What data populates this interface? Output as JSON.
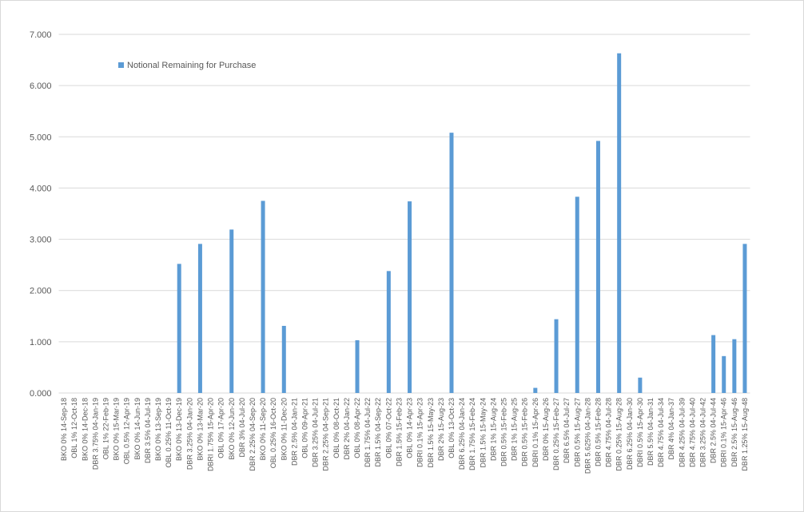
{
  "chart_data": {
    "type": "bar",
    "categories": [
      "BKO 0% 14-Sep-18",
      "OBL 1% 12-Oct-18",
      "BKO 0% 14-Dec-18",
      "DBR 3.75% 04-Jan-19",
      "OBL 1% 22-Feb-19",
      "BKO 0% 15-Mar-19",
      "OBL 0.5% 12-Apr-19",
      "BKO 0% 14-Jun-19",
      "DBR 3.5% 04-Jul-19",
      "BKO 0% 13-Sep-19",
      "OBL 0.25% 11-Oct-19",
      "BKO 0% 13-Dec-19",
      "DBR 3.25% 04-Jan-20",
      "BKO 0% 13-Mar-20",
      "DBRI 1.75% 15-Apr-20",
      "OBL 0% 17-Apr-20",
      "BKO 0% 12-Jun-20",
      "DBR 3% 04-Jul-20",
      "DBR 2.25% 04-Sep-20",
      "BKO 0% 11-Sep-20",
      "OBL 0.25% 16-Oct-20",
      "BKO 0% 11-Dec-20",
      "DBR 2.5% 04-Jan-21",
      "OBL 0% 09-Apr-21",
      "DBR 3.25% 04-Jul-21",
      "DBR 2.25% 04-Sep-21",
      "OBL 0% 08-Oct-21",
      "DBR 2% 04-Jan-22",
      "OBL 0% 08-Apr-22",
      "DBR 1.75% 04-Jul-22",
      "DBR 1.5% 04-Sep-22",
      "OBL 0% 07-Oct-22",
      "DBR 1.5% 15-Feb-23",
      "OBL 0% 14-Apr-23",
      "DBRI 0.1% 15-Apr-23",
      "DBR 1.5% 15-May-23",
      "DBR 2% 15-Aug-23",
      "OBL 0% 13-Oct-23",
      "DBR 6.25% 04-Jan-24",
      "DBR 1.75% 15-Feb-24",
      "DBR 1.5% 15-May-24",
      "DBR 1% 15-Aug-24",
      "DBR 0.5% 15-Feb-25",
      "DBR 1% 15-Aug-25",
      "DBR 0.5% 15-Feb-26",
      "DBRI 0.1% 15-Apr-26",
      "DBR 0% 15-Aug-26",
      "DBR 0.25% 15-Feb-27",
      "DBR 6.5% 04-Jul-27",
      "DBR 0.5% 15-Aug-27",
      "DBR 5.625% 04-Jan-28",
      "DBR 0.5% 15-Feb-28",
      "DBR 4.75% 04-Jul-28",
      "DBR 0.25% 15-Aug-28",
      "DBR 6.25% 04-Jan-30",
      "DBRI 0.5% 15-Apr-30",
      "DBR 5.5% 04-Jan-31",
      "DBR 4.75% 04-Jul-34",
      "DBR 4% 04-Jan-37",
      "DBR 4.25% 04-Jul-39",
      "DBR 4.75% 04-Jul-40",
      "DBR 3.25% 04-Jul-42",
      "DBR 2.5% 04-Jul-44",
      "DBRI 0.1% 15-Apr-46",
      "DBR 2.5% 15-Aug-46",
      "DBR 1.25% 15-Aug-48"
    ],
    "series": [
      {
        "name": "Notional Remaining for Purchase",
        "color": "#5b9bd5",
        "values": [
          0,
          0,
          0,
          0,
          0,
          0,
          0,
          0,
          0,
          0,
          0,
          2.52,
          0,
          2.91,
          0,
          0,
          3.19,
          0,
          0,
          3.75,
          0,
          1.31,
          0,
          0,
          0,
          0,
          0,
          0,
          1.03,
          0,
          0,
          2.38,
          0,
          3.74,
          0,
          0,
          0,
          5.08,
          0,
          0,
          0,
          0,
          0,
          0,
          0,
          0.1,
          0,
          1.44,
          0,
          3.83,
          0,
          4.92,
          0,
          6.63,
          0,
          0.3,
          0,
          0,
          0,
          0,
          0,
          0,
          1.13,
          0.72,
          1.05,
          2.91
        ]
      }
    ],
    "ylim": [
      0,
      7
    ],
    "yticks": [
      {
        "value": 0,
        "label": "0.000"
      },
      {
        "value": 1,
        "label": "1.000"
      },
      {
        "value": 2,
        "label": "2.000"
      },
      {
        "value": 3,
        "label": "3.000"
      },
      {
        "value": 4,
        "label": "4.000"
      },
      {
        "value": 5,
        "label": "5.000"
      },
      {
        "value": 6,
        "label": "6.000"
      },
      {
        "value": 7,
        "label": "7.000"
      }
    ],
    "grid": true,
    "legend": "top-left"
  }
}
